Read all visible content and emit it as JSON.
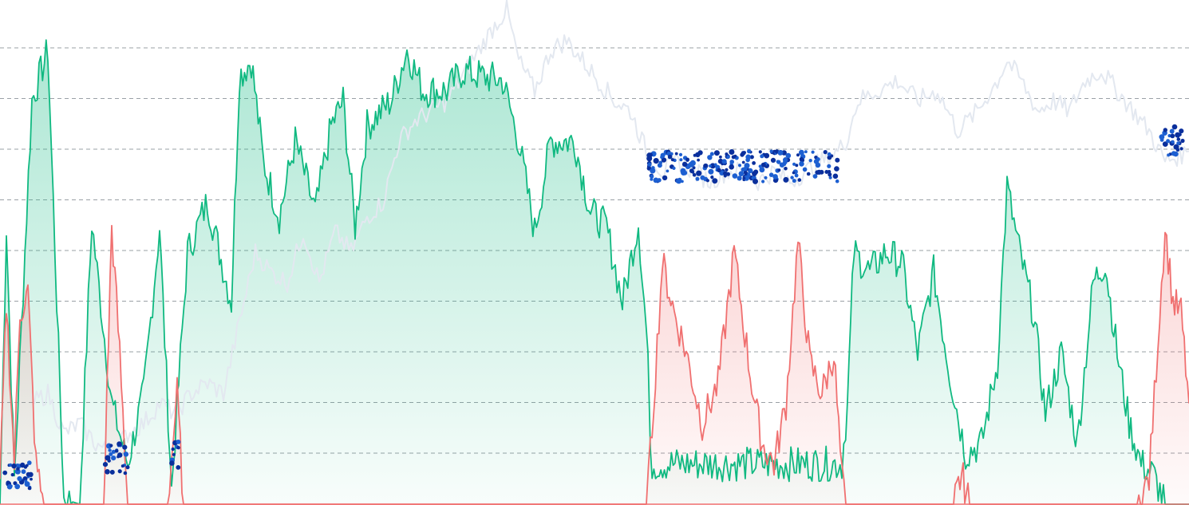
{
  "chart_data": {
    "type": "area",
    "title": "",
    "xlabel": "",
    "ylabel": "",
    "grid": true,
    "grid_style": "dashed",
    "y_grid_lines": 9,
    "ylim": [
      0,
      100
    ],
    "x": [
      0,
      10,
      20,
      30,
      40,
      50,
      60,
      70,
      80,
      90,
      100
    ],
    "series": [
      {
        "role": "oscillator-positive",
        "color": "#10b981",
        "fill": "#10b981",
        "values": [
          [
            0,
            0
          ],
          [
            8,
            55
          ],
          [
            18,
            5
          ],
          [
            40,
            80
          ],
          [
            60,
            90
          ],
          [
            80,
            1
          ],
          [
            100,
            0
          ],
          [
            115,
            56
          ],
          [
            140,
            20
          ],
          [
            160,
            8
          ],
          [
            180,
            22
          ],
          [
            200,
            55
          ],
          [
            215,
            3
          ],
          [
            235,
            50
          ],
          [
            260,
            60
          ],
          [
            290,
            40
          ],
          [
            300,
            85
          ],
          [
            315,
            88
          ],
          [
            330,
            68
          ],
          [
            350,
            57
          ],
          [
            370,
            72
          ],
          [
            395,
            58
          ],
          [
            415,
            75
          ],
          [
            430,
            80
          ],
          [
            445,
            55
          ],
          [
            460,
            75
          ],
          [
            490,
            80
          ],
          [
            510,
            90
          ],
          [
            530,
            82
          ],
          [
            560,
            82
          ],
          [
            580,
            86
          ],
          [
            600,
            85
          ],
          [
            630,
            84
          ],
          [
            650,
            72
          ],
          [
            670,
            54
          ],
          [
            690,
            72
          ],
          [
            720,
            72
          ],
          [
            740,
            58
          ],
          [
            760,
            55
          ],
          [
            780,
            40
          ],
          [
            800,
            56
          ],
          [
            812,
            30
          ],
          [
            815,
            8
          ],
          [
            1055,
            8
          ],
          [
            1062,
            20
          ],
          [
            1070,
            50
          ],
          [
            1090,
            46
          ],
          [
            1110,
            50
          ],
          [
            1130,
            48
          ],
          [
            1150,
            30
          ],
          [
            1170,
            46
          ],
          [
            1190,
            26
          ],
          [
            1210,
            10
          ],
          [
            1230,
            12
          ],
          [
            1250,
            28
          ],
          [
            1262,
            63
          ],
          [
            1275,
            52
          ],
          [
            1295,
            38
          ],
          [
            1310,
            18
          ],
          [
            1330,
            30
          ],
          [
            1350,
            12
          ],
          [
            1370,
            44
          ],
          [
            1385,
            48
          ],
          [
            1400,
            30
          ],
          [
            1415,
            16
          ],
          [
            1430,
            8
          ],
          [
            1445,
            6
          ],
          [
            1460,
            0
          ],
          [
            1490,
            0
          ]
        ]
      },
      {
        "role": "oscillator-negative",
        "color": "#f07070",
        "fill": "#f07070",
        "values": [
          [
            0,
            4
          ],
          [
            8,
            40
          ],
          [
            18,
            8
          ],
          [
            25,
            38
          ],
          [
            35,
            42
          ],
          [
            45,
            8
          ],
          [
            55,
            0
          ],
          [
            130,
            0
          ],
          [
            140,
            55
          ],
          [
            150,
            30
          ],
          [
            160,
            0
          ],
          [
            210,
            0
          ],
          [
            222,
            22
          ],
          [
            230,
            0
          ],
          [
            810,
            0
          ],
          [
            815,
            10
          ],
          [
            830,
            48
          ],
          [
            845,
            38
          ],
          [
            860,
            30
          ],
          [
            880,
            16
          ],
          [
            900,
            24
          ],
          [
            920,
            50
          ],
          [
            940,
            26
          ],
          [
            955,
            12
          ],
          [
            970,
            8
          ],
          [
            985,
            20
          ],
          [
            1000,
            52
          ],
          [
            1015,
            28
          ],
          [
            1030,
            22
          ],
          [
            1045,
            30
          ],
          [
            1055,
            5
          ],
          [
            1060,
            0
          ],
          [
            1195,
            0
          ],
          [
            1205,
            6
          ],
          [
            1215,
            0
          ],
          [
            1425,
            0
          ],
          [
            1440,
            5
          ],
          [
            1460,
            55
          ],
          [
            1470,
            40
          ],
          [
            1480,
            38
          ],
          [
            1490,
            20
          ]
        ]
      },
      {
        "role": "price-line",
        "color": "#e3e8f0",
        "values": [
          [
            40,
            20
          ],
          [
            60,
            22
          ],
          [
            80,
            14
          ],
          [
            100,
            16
          ],
          [
            120,
            12
          ],
          [
            140,
            10
          ],
          [
            160,
            14
          ],
          [
            180,
            16
          ],
          [
            200,
            20
          ],
          [
            220,
            18
          ],
          [
            240,
            22
          ],
          [
            260,
            24
          ],
          [
            280,
            22
          ],
          [
            300,
            36
          ],
          [
            320,
            50
          ],
          [
            340,
            46
          ],
          [
            360,
            44
          ],
          [
            380,
            54
          ],
          [
            400,
            44
          ],
          [
            420,
            54
          ],
          [
            440,
            50
          ],
          [
            460,
            57
          ],
          [
            480,
            60
          ],
          [
            500,
            72
          ],
          [
            520,
            76
          ],
          [
            540,
            78
          ],
          [
            560,
            80
          ],
          [
            580,
            85
          ],
          [
            600,
            90
          ],
          [
            620,
            95
          ],
          [
            635,
            98
          ],
          [
            650,
            88
          ],
          [
            670,
            82
          ],
          [
            690,
            90
          ],
          [
            710,
            92
          ],
          [
            730,
            88
          ],
          [
            750,
            84
          ],
          [
            770,
            80
          ],
          [
            790,
            78
          ],
          [
            810,
            70
          ],
          [
            830,
            66
          ],
          [
            850,
            68
          ],
          [
            870,
            66
          ],
          [
            890,
            64
          ],
          [
            910,
            66
          ],
          [
            930,
            66
          ],
          [
            950,
            64
          ],
          [
            970,
            66
          ],
          [
            990,
            64
          ],
          [
            1010,
            66
          ],
          [
            1030,
            68
          ],
          [
            1050,
            70
          ],
          [
            1060,
            72
          ],
          [
            1075,
            80
          ],
          [
            1100,
            82
          ],
          [
            1125,
            84
          ],
          [
            1150,
            80
          ],
          [
            1175,
            82
          ],
          [
            1200,
            74
          ],
          [
            1225,
            78
          ],
          [
            1250,
            84
          ],
          [
            1262,
            88
          ],
          [
            1280,
            84
          ],
          [
            1300,
            78
          ],
          [
            1320,
            80
          ],
          [
            1340,
            78
          ],
          [
            1360,
            84
          ],
          [
            1380,
            86
          ],
          [
            1400,
            82
          ],
          [
            1420,
            78
          ],
          [
            1440,
            74
          ],
          [
            1460,
            68
          ],
          [
            1490,
            70
          ]
        ]
      }
    ],
    "markers": {
      "color": "#1d5fd1",
      "color_dark": "#0a2f9c",
      "clusters": [
        {
          "x_start": 5,
          "x_end": 40,
          "y_center": 6
        },
        {
          "x_start": 132,
          "x_end": 160,
          "y_center": 9
        },
        {
          "x_start": 215,
          "x_end": 224,
          "y_center": 10
        },
        {
          "x_start": 812,
          "x_end": 1052,
          "y_center": 67
        },
        {
          "x_start": 1455,
          "x_end": 1485,
          "y_center": 72
        }
      ]
    }
  }
}
